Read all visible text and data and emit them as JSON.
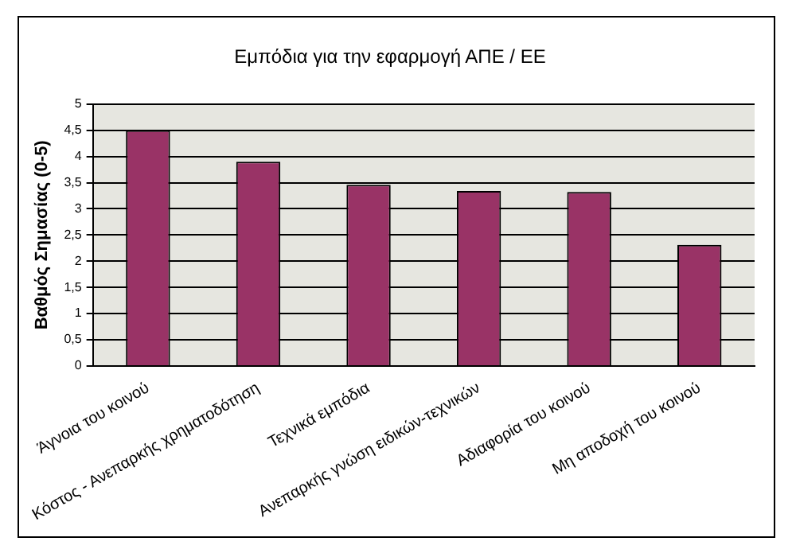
{
  "chart_data": {
    "type": "bar",
    "title": "Εμπόδια για την εφαρμογή ΑΠΕ / ΕΕ",
    "ylabel": "Βαθμός Σημασίας (0-5)",
    "categories": [
      "Άγνοια του κοινού",
      "Κόστος - Ανεπαρκής χρηματοδότηση",
      "Τεχνικά εμπόδια",
      "Ανεπαρκής γνώση ειδικών-τεχνικών",
      "Αδιαφορία του κοινού",
      "Μη αποδοχή του κοινού"
    ],
    "values": [
      4.5,
      3.9,
      3.46,
      3.34,
      3.32,
      2.31
    ],
    "color": "#993366",
    "ylim": [
      0,
      5
    ],
    "yticks": [
      0,
      {
        "value": 0.5,
        "label": "0,5"
      },
      1,
      {
        "value": 1.5,
        "label": "1,5"
      },
      2,
      {
        "value": 2.5,
        "label": "2,5"
      },
      3,
      {
        "value": 3.5,
        "label": "3,5"
      },
      4,
      {
        "value": 4.5,
        "label": "4,5"
      },
      5
    ],
    "grid": "y",
    "legend": false
  }
}
